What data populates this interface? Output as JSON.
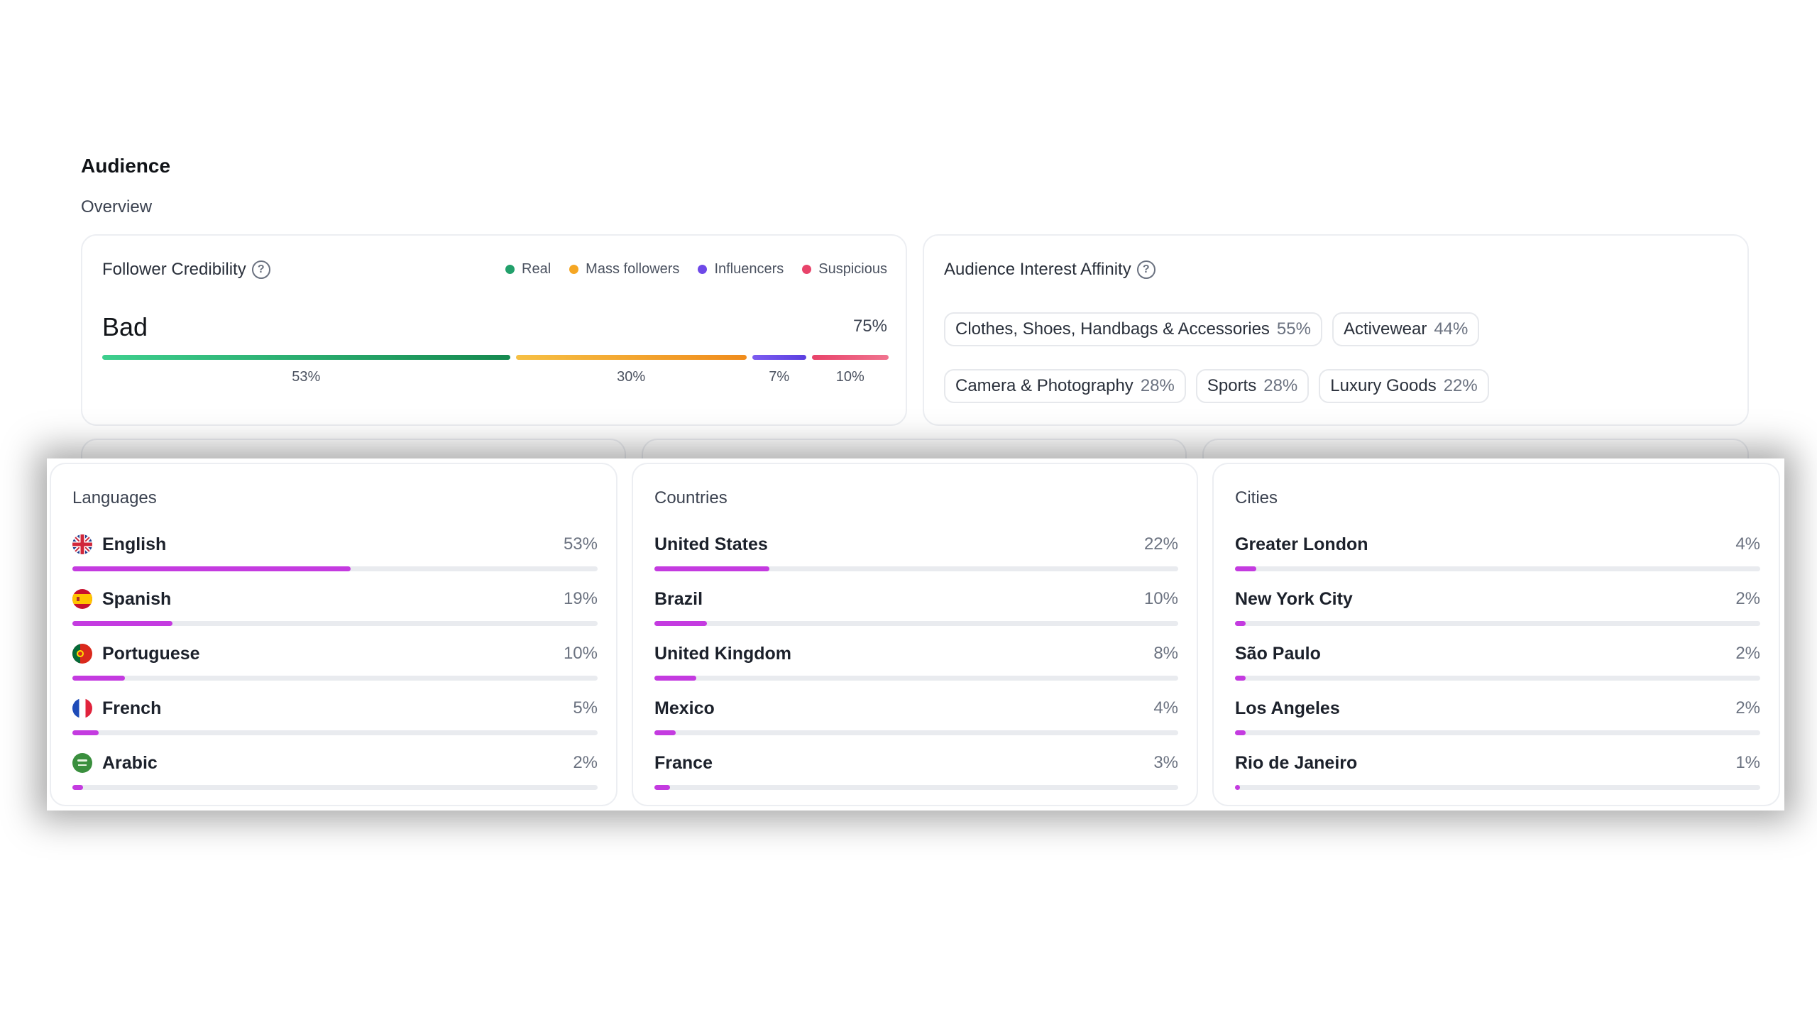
{
  "header": {
    "title": "Audience",
    "subtitle": "Overview"
  },
  "credibility": {
    "title": "Follower Credibility",
    "help_icon": "question-circle-icon",
    "legend": [
      {
        "label": "Real",
        "color": "#22a06b"
      },
      {
        "label": "Mass followers",
        "color": "#f5a623"
      },
      {
        "label": "Influencers",
        "color": "#6e49e8"
      },
      {
        "label": "Suspicious",
        "color": "#e8436a"
      }
    ],
    "rating": "Bad",
    "score": "75%",
    "segments": [
      {
        "label": "53%",
        "value": 53,
        "color_from": "#3ecf8e",
        "color_to": "#15894f"
      },
      {
        "label": "30%",
        "value": 30,
        "color_from": "#f6c044",
        "color_to": "#f08c1c"
      },
      {
        "label": "7%",
        "value": 7,
        "color_from": "#7c5cf0",
        "color_to": "#5b3fe0"
      },
      {
        "label": "10%",
        "value": 10,
        "color_from": "#e8436a",
        "color_to": "#f0748f"
      }
    ]
  },
  "affinity": {
    "title": "Audience Interest Affinity",
    "help_icon": "question-circle-icon",
    "chips": [
      {
        "label": "Clothes, Shoes, Handbags & Accessories",
        "pct": "55%"
      },
      {
        "label": "Activewear",
        "pct": "44%"
      },
      {
        "label": "Camera & Photography",
        "pct": "28%"
      },
      {
        "label": "Sports",
        "pct": "28%"
      },
      {
        "label": "Luxury Goods",
        "pct": "22%"
      }
    ]
  },
  "languages": {
    "title": "Languages",
    "items": [
      {
        "label": "English",
        "pct": "53%",
        "value": 53,
        "flag": "uk-flag-icon"
      },
      {
        "label": "Spanish",
        "pct": "19%",
        "value": 19,
        "flag": "spain-flag-icon"
      },
      {
        "label": "Portuguese",
        "pct": "10%",
        "value": 10,
        "flag": "portugal-flag-icon"
      },
      {
        "label": "French",
        "pct": "5%",
        "value": 5,
        "flag": "france-flag-icon"
      },
      {
        "label": "Arabic",
        "pct": "2%",
        "value": 2,
        "flag": "saudi-flag-icon"
      }
    ]
  },
  "countries": {
    "title": "Countries",
    "items": [
      {
        "label": "United States",
        "pct": "22%",
        "value": 22
      },
      {
        "label": "Brazil",
        "pct": "10%",
        "value": 10
      },
      {
        "label": "United Kingdom",
        "pct": "8%",
        "value": 8
      },
      {
        "label": "Mexico",
        "pct": "4%",
        "value": 4
      },
      {
        "label": "France",
        "pct": "3%",
        "value": 3
      }
    ]
  },
  "cities": {
    "title": "Cities",
    "items": [
      {
        "label": "Greater London",
        "pct": "4%",
        "value": 4
      },
      {
        "label": "New York City",
        "pct": "2%",
        "value": 2
      },
      {
        "label": "São Paulo",
        "pct": "2%",
        "value": 2
      },
      {
        "label": "Los Angeles",
        "pct": "2%",
        "value": 2
      },
      {
        "label": "Rio de Janeiro",
        "pct": "1%",
        "value": 1
      }
    ]
  },
  "colors": {
    "bar_fill": "#c43be0",
    "bar_track": "#e9ebef"
  }
}
